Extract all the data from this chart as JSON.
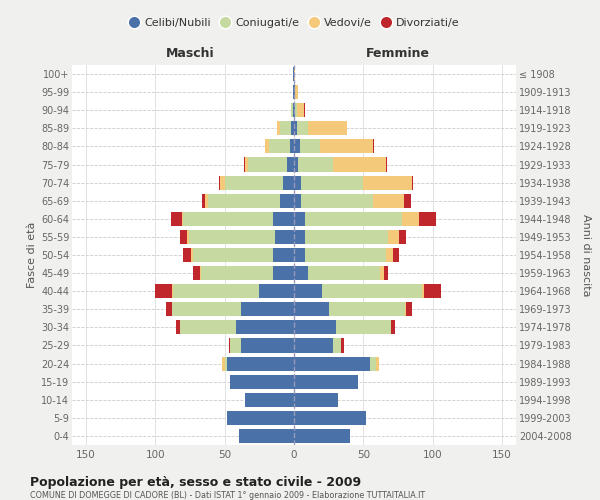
{
  "age_groups": [
    "0-4",
    "5-9",
    "10-14",
    "15-19",
    "20-24",
    "25-29",
    "30-34",
    "35-39",
    "40-44",
    "45-49",
    "50-54",
    "55-59",
    "60-64",
    "65-69",
    "70-74",
    "75-79",
    "80-84",
    "85-89",
    "90-94",
    "95-99",
    "100+"
  ],
  "birth_years": [
    "2004-2008",
    "1999-2003",
    "1994-1998",
    "1989-1993",
    "1984-1988",
    "1979-1983",
    "1974-1978",
    "1969-1973",
    "1964-1968",
    "1959-1963",
    "1954-1958",
    "1949-1953",
    "1944-1948",
    "1939-1943",
    "1934-1938",
    "1929-1933",
    "1924-1928",
    "1919-1923",
    "1914-1918",
    "1909-1913",
    "≤ 1908"
  ],
  "colors": {
    "celibi": "#4a72a8",
    "coniugati": "#c5d9a0",
    "vedovi": "#f5c97a",
    "divorziati": "#c0272d"
  },
  "maschi": {
    "celibi": [
      40,
      48,
      35,
      46,
      48,
      38,
      42,
      38,
      25,
      15,
      15,
      14,
      15,
      10,
      8,
      5,
      3,
      2,
      1,
      1,
      1
    ],
    "coniugati": [
      0,
      0,
      0,
      0,
      2,
      8,
      40,
      50,
      62,
      52,
      58,
      62,
      65,
      52,
      42,
      28,
      15,
      8,
      1,
      0,
      0
    ],
    "vedovi": [
      0,
      0,
      0,
      0,
      2,
      0,
      0,
      0,
      1,
      1,
      1,
      1,
      1,
      2,
      3,
      2,
      3,
      2,
      0,
      0,
      0
    ],
    "divorziati": [
      0,
      0,
      0,
      0,
      0,
      1,
      3,
      4,
      12,
      5,
      6,
      5,
      8,
      2,
      1,
      1,
      0,
      0,
      0,
      0,
      0
    ]
  },
  "femmine": {
    "celibi": [
      40,
      52,
      32,
      46,
      55,
      28,
      30,
      25,
      20,
      10,
      8,
      8,
      8,
      5,
      5,
      3,
      4,
      2,
      1,
      1,
      0
    ],
    "coniugati": [
      0,
      0,
      0,
      0,
      4,
      6,
      40,
      55,
      72,
      52,
      58,
      60,
      70,
      52,
      45,
      25,
      15,
      8,
      1,
      0,
      0
    ],
    "vedovi": [
      0,
      0,
      0,
      0,
      2,
      0,
      0,
      1,
      2,
      3,
      5,
      8,
      12,
      22,
      35,
      38,
      38,
      28,
      5,
      2,
      1
    ],
    "divorziati": [
      0,
      0,
      0,
      0,
      0,
      2,
      3,
      4,
      12,
      3,
      5,
      5,
      12,
      5,
      1,
      1,
      1,
      0,
      1,
      0,
      0
    ]
  },
  "title": "Popolazione per età, sesso e stato civile - 2009",
  "subtitle": "COMUNE DI DOMEGGE DI CADORE (BL) - Dati ISTAT 1° gennaio 2009 - Elaborazione TUTTAITALIA.IT",
  "xlabel_left": "Maschi",
  "xlabel_right": "Femmine",
  "ylabel_left": "Fasce di età",
  "ylabel_right": "Anni di nascita",
  "xlim": 160,
  "legend_labels": [
    "Celibi/Nubili",
    "Coniugati/e",
    "Vedovi/e",
    "Divorziati/e"
  ],
  "bg_color": "#f0f0ee",
  "plot_bg": "#ffffff",
  "grid_color": "#cccccc"
}
